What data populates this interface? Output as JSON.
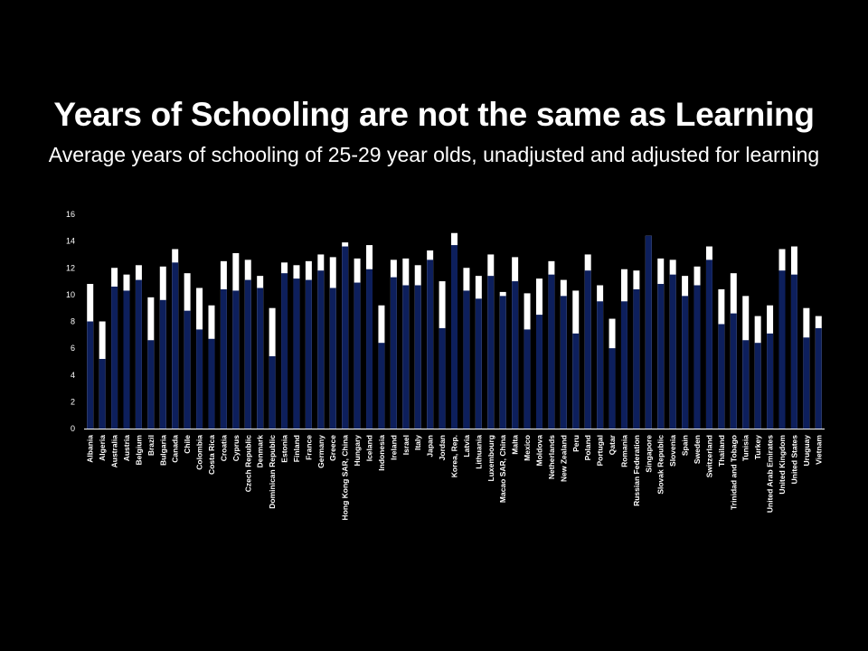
{
  "chart_data": {
    "type": "bar",
    "title": "Years of Schooling are not the same as Learning",
    "subtitle": "Average years of schooling of 25-29 year olds, unadjusted and adjusted for learning",
    "xlabel": "",
    "ylabel": "",
    "ylim": [
      0,
      16
    ],
    "yticks": [
      0,
      2,
      4,
      6,
      8,
      10,
      12,
      14,
      16
    ],
    "grid": false,
    "colors": {
      "adjusted": "#0d1f5c",
      "unadjusted": "#ffffff",
      "axis": "#ffffff",
      "background": "#000000"
    },
    "categories": [
      "Albania",
      "Algeria",
      "Australia",
      "Austria",
      "Belgium",
      "Brazil",
      "Bulgaria",
      "Canada",
      "Chile",
      "Colombia",
      "Costa Rica",
      "Croatia",
      "Cyprus",
      "Czech Republic",
      "Denmark",
      "Dominican Republic",
      "Estonia",
      "Finland",
      "France",
      "Germany",
      "Greece",
      "Hong Kong SAR, China",
      "Hungary",
      "Iceland",
      "Indonesia",
      "Ireland",
      "Israel",
      "Italy",
      "Japan",
      "Jordan",
      "Korea, Rep.",
      "Latvia",
      "Lithuania",
      "Luxembourg",
      "Macao SAR, China",
      "Malta",
      "Mexico",
      "Moldova",
      "Netherlands",
      "New Zealand",
      "Peru",
      "Poland",
      "Portugal",
      "Qatar",
      "Romania",
      "Russian Federation",
      "Singapore",
      "Slovak Republic",
      "Slovenia",
      "Spain",
      "Sweden",
      "Switzerland",
      "Thailand",
      "Trinidad and Tobago",
      "Tunisia",
      "Turkey",
      "United Arab Emirates",
      "United Kingdom",
      "United States",
      "Uruguay",
      "Vietnam"
    ],
    "series": [
      {
        "values": [
          8.0,
          5.2,
          10.6,
          10.3,
          11.1,
          6.6,
          9.6,
          12.4,
          8.8,
          7.4,
          6.7,
          10.4,
          10.3,
          11.1,
          10.5,
          5.4,
          11.6,
          11.2,
          11.1,
          11.8,
          10.5,
          13.6,
          10.9,
          11.9,
          6.4,
          11.3,
          10.7,
          10.7,
          12.6,
          7.5,
          13.7,
          10.3,
          9.7,
          11.4,
          9.9,
          11.0,
          7.4,
          8.5,
          11.5,
          9.9,
          7.1,
          11.8,
          9.5,
          6.0,
          9.5,
          10.4,
          14.4,
          10.8,
          11.5,
          9.9,
          10.7,
          12.6,
          7.8,
          8.6,
          6.6,
          6.4,
          7.1,
          11.8,
          11.5,
          6.8,
          7.5
        ]
      },
      {
        "values": [
          10.8,
          8.0,
          12.0,
          11.5,
          12.2,
          9.8,
          12.1,
          13.4,
          11.6,
          10.5,
          9.2,
          12.5,
          13.1,
          12.6,
          11.4,
          9.0,
          12.4,
          12.2,
          12.5,
          13.0,
          12.8,
          13.9,
          12.7,
          13.7,
          9.2,
          12.6,
          12.7,
          12.2,
          13.3,
          11.0,
          14.6,
          12.0,
          11.4,
          13.0,
          10.2,
          12.8,
          10.1,
          11.2,
          12.5,
          11.1,
          10.3,
          13.0,
          10.7,
          8.2,
          11.9,
          11.8,
          14.4,
          12.7,
          12.6,
          11.4,
          12.1,
          13.6,
          10.4,
          11.6,
          9.9,
          8.4,
          9.2,
          13.4,
          13.6,
          9.0,
          8.4
        ]
      }
    ]
  }
}
